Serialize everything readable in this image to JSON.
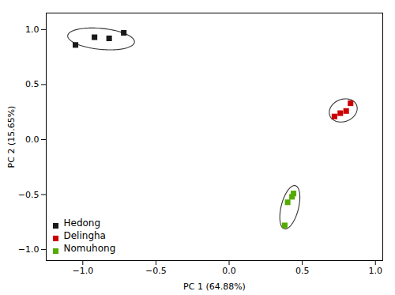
{
  "chart_data": {
    "type": "scatter",
    "xlabel": "PC 1 (64.88%)",
    "ylabel": "PC 2 (15.65%)",
    "xlim": [
      -1.25,
      1.05
    ],
    "ylim": [
      -1.1,
      1.15
    ],
    "xticks": [
      {
        "value": -1.0,
        "label": "−1.0"
      },
      {
        "value": -0.5,
        "label": "−0.5"
      },
      {
        "value": 0.0,
        "label": "0.0"
      },
      {
        "value": 0.5,
        "label": "0.5"
      },
      {
        "value": 1.0,
        "label": "1.0"
      }
    ],
    "yticks": [
      {
        "value": -1.0,
        "label": "−1.0"
      },
      {
        "value": -0.5,
        "label": "−0.5"
      },
      {
        "value": 0.0,
        "label": "0.0"
      },
      {
        "value": 0.5,
        "label": "0.5"
      },
      {
        "value": 1.0,
        "label": "1.0"
      }
    ],
    "grid": false,
    "legend": "lower left",
    "marker": "square",
    "series": [
      {
        "name": "Hedong",
        "color": "#1a1a1a",
        "values": [
          [
            -1.05,
            0.86
          ],
          [
            -0.92,
            0.93
          ],
          [
            -0.82,
            0.92
          ],
          [
            -0.72,
            0.97
          ]
        ],
        "ellipse": {
          "center": [
            -0.875,
            0.915
          ],
          "width": 0.46,
          "height": 0.19,
          "angle": -8,
          "color": "#333333"
        }
      },
      {
        "name": "Delingha",
        "color": "#cc0000",
        "values": [
          [
            0.72,
            0.21
          ],
          [
            0.76,
            0.24
          ],
          [
            0.8,
            0.26
          ],
          [
            0.83,
            0.33
          ]
        ],
        "ellipse": {
          "center": [
            0.78,
            0.265
          ],
          "width": 0.18,
          "height": 0.22,
          "angle": -30,
          "color": "#333333"
        }
      },
      {
        "name": "Nomuhong",
        "color": "#55aa00",
        "values": [
          [
            0.38,
            -0.78
          ],
          [
            0.4,
            -0.57
          ],
          [
            0.43,
            -0.52
          ],
          [
            0.44,
            -0.49
          ]
        ],
        "ellipse": {
          "center": [
            0.415,
            -0.615
          ],
          "width": 0.12,
          "height": 0.4,
          "angle": -10,
          "color": "#333333"
        }
      }
    ]
  }
}
